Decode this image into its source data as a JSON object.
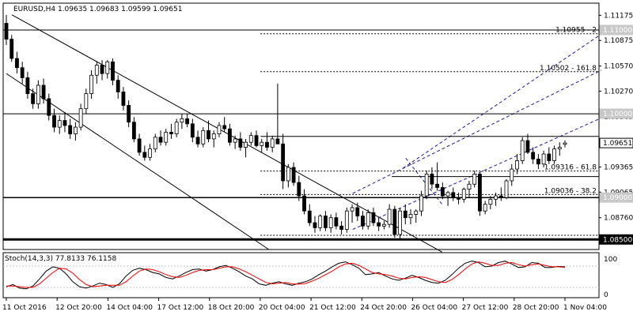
{
  "chart_header": "EURUSD,H4  1.09635 1.09683 1.09599 1.09651",
  "stoch_header": "Stoch(14,3,3) 77.8133 76.1158",
  "chart_data": [
    {
      "type": "candlestick",
      "symbol": "EURUSD",
      "timeframe": "H4",
      "ohlc_last": {
        "open": 1.09635,
        "high": 1.09683,
        "low": 1.09599,
        "close": 1.09651
      },
      "ylim": [
        1.0838,
        1.1132
      ],
      "y_ticks": [
        "1.11175",
        "1.10875",
        "1.10570",
        "1.10270",
        "1.09965",
        "1.09651",
        "1.09365",
        "1.09065",
        "1.08760"
      ],
      "x_ticks": [
        "11 Oct 2016",
        "12 Oct 20:00",
        "14 Oct 04:00",
        "17 Oct 12:00",
        "18 Oct 20:00",
        "20 Oct 04:00",
        "21 Oct 12:00",
        "24 Oct 20:00",
        "26 Oct 04:00",
        "27 Oct 12:00",
        "28 Oct 20:00",
        "1 Nov 04:00"
      ],
      "bull_color": "#ffffff",
      "bear_color": "#000000",
      "candles": [
        [
          1.1108,
          1.1118,
          1.1082,
          1.1089
        ],
        [
          1.1089,
          1.1094,
          1.1062,
          1.1066
        ],
        [
          1.1066,
          1.1074,
          1.1048,
          1.1055
        ],
        [
          1.1055,
          1.1062,
          1.1036,
          1.1043
        ],
        [
          1.1043,
          1.105,
          1.1018,
          1.1024
        ],
        [
          1.1024,
          1.103,
          1.1006,
          1.1012
        ],
        [
          1.1012,
          1.104,
          1.1006,
          1.1034
        ],
        [
          1.1034,
          1.1042,
          1.1012,
          1.1018
        ],
        [
          1.1018,
          1.1024,
          1.0992,
          1.0998
        ],
        [
          1.0998,
          1.1006,
          1.0978,
          1.0984
        ],
        [
          1.0984,
          1.0998,
          1.0976,
          1.0992
        ],
        [
          1.0992,
          1.1002,
          1.0978,
          1.0986
        ],
        [
          1.0986,
          1.0994,
          1.097,
          1.0976
        ],
        [
          1.0976,
          1.099,
          1.0968,
          1.0984
        ],
        [
          1.0984,
          1.1012,
          1.098,
          1.1006
        ],
        [
          1.1006,
          1.103,
          1.1,
          1.1024
        ],
        [
          1.1024,
          1.1052,
          1.1018,
          1.1046
        ],
        [
          1.1046,
          1.1062,
          1.1036,
          1.1058
        ],
        [
          1.1058,
          1.1064,
          1.104,
          1.1048
        ],
        [
          1.1048,
          1.1064,
          1.1042,
          1.1062
        ],
        [
          1.1062,
          1.1066,
          1.1034,
          1.104
        ],
        [
          1.104,
          1.1046,
          1.1018,
          1.1026
        ],
        [
          1.1026,
          1.1032,
          1.1004,
          1.101
        ],
        [
          1.101,
          1.1016,
          1.0984,
          1.099
        ],
        [
          1.099,
          1.0996,
          1.0966,
          1.097
        ],
        [
          1.097,
          1.0976,
          1.095,
          1.0954
        ],
        [
          1.0954,
          1.0962,
          1.0944,
          1.0948
        ],
        [
          1.0948,
          1.0964,
          1.0944,
          1.0958
        ],
        [
          1.0958,
          1.0976,
          1.0954,
          1.0972
        ],
        [
          1.0972,
          1.098,
          1.0962,
          1.0966
        ],
        [
          1.0966,
          1.0982,
          1.0962,
          1.0978
        ],
        [
          1.0978,
          1.0988,
          1.097,
          1.0976
        ],
        [
          1.0976,
          1.0994,
          1.0972,
          1.099
        ],
        [
          1.099,
          1.1,
          1.0982,
          1.0994
        ],
        [
          1.0994,
          1.1,
          1.0984,
          1.0988
        ],
        [
          1.0988,
          1.0994,
          1.0966,
          1.0972
        ],
        [
          1.0972,
          1.098,
          1.096,
          1.0964
        ],
        [
          1.0964,
          1.0984,
          1.096,
          1.098
        ],
        [
          1.098,
          1.0992,
          1.0966,
          1.097
        ],
        [
          1.097,
          1.098,
          1.096,
          1.0976
        ],
        [
          1.0976,
          1.099,
          1.0972,
          1.0986
        ],
        [
          1.0986,
          1.0996,
          1.0978,
          1.0982
        ],
        [
          1.0982,
          1.0988,
          1.0962,
          1.0966
        ],
        [
          1.0966,
          1.0974,
          1.0958,
          1.097
        ],
        [
          1.097,
          1.0978,
          1.0956,
          1.096
        ],
        [
          1.096,
          1.097,
          1.0948,
          1.0966
        ],
        [
          1.0966,
          1.0978,
          1.0962,
          1.0974
        ],
        [
          1.0974,
          1.098,
          1.096,
          1.0962
        ],
        [
          1.0962,
          1.097,
          1.0954,
          1.0966
        ],
        [
          1.0966,
          1.0978,
          1.0956,
          1.096
        ],
        [
          1.096,
          1.0974,
          1.0954,
          1.097
        ],
        [
          1.097,
          1.1036,
          1.0964,
          1.0964
        ],
        [
          1.0964,
          1.0976,
          1.091,
          1.092
        ],
        [
          1.092,
          1.094,
          1.0912,
          1.0936
        ],
        [
          1.0936,
          1.0942,
          1.0914,
          1.0918
        ],
        [
          1.0918,
          1.0926,
          1.0896,
          1.0902
        ],
        [
          1.0902,
          1.091,
          1.088,
          1.0884
        ],
        [
          1.0884,
          1.0892,
          1.0866,
          1.087
        ],
        [
          1.087,
          1.0878,
          1.0858,
          1.0864
        ],
        [
          1.0864,
          1.088,
          1.086,
          1.0878
        ],
        [
          1.0878,
          1.0884,
          1.086,
          1.0864
        ],
        [
          1.0864,
          1.088,
          1.0858,
          1.0876
        ],
        [
          1.0876,
          1.0882,
          1.0862,
          1.0866
        ],
        [
          1.0866,
          1.0872,
          1.0856,
          1.0862
        ],
        [
          1.0862,
          1.0888,
          1.0858,
          1.0884
        ],
        [
          1.0884,
          1.0892,
          1.087,
          1.0888
        ],
        [
          1.0888,
          1.0894,
          1.0872,
          1.0878
        ],
        [
          1.0878,
          1.0884,
          1.0862,
          1.0866
        ],
        [
          1.0866,
          1.0886,
          1.0862,
          1.0882
        ],
        [
          1.0882,
          1.0888,
          1.0866,
          1.087
        ],
        [
          1.087,
          1.0876,
          1.086,
          1.0866
        ],
        [
          1.0866,
          1.0872,
          1.0862,
          1.0868
        ],
        [
          1.0868,
          1.0892,
          1.0864,
          1.0886
        ],
        [
          1.0886,
          1.089,
          1.0852,
          1.0856
        ],
        [
          1.0856,
          1.0888,
          1.085,
          1.0884
        ],
        [
          1.0884,
          1.0892,
          1.0868,
          1.0876
        ],
        [
          1.0876,
          1.0886,
          1.0868,
          1.088
        ],
        [
          1.088,
          1.0886,
          1.087,
          1.0884
        ],
        [
          1.0884,
          1.0908,
          1.0878,
          1.0902
        ],
        [
          1.0902,
          1.0932,
          1.0898,
          1.0928
        ],
        [
          1.0928,
          1.0936,
          1.091,
          1.0916
        ],
        [
          1.0916,
          1.0942,
          1.0908,
          1.0912
        ],
        [
          1.0912,
          1.0918,
          1.0898,
          1.0902
        ],
        [
          1.0902,
          1.0908,
          1.089,
          1.0906
        ],
        [
          1.0906,
          1.0912,
          1.0896,
          1.09
        ],
        [
          1.09,
          1.0906,
          1.0892,
          1.0898
        ],
        [
          1.0898,
          1.0912,
          1.0894,
          1.091
        ],
        [
          1.091,
          1.092,
          1.09,
          1.0916
        ],
        [
          1.0916,
          1.0932,
          1.0912,
          1.0928
        ],
        [
          1.0928,
          1.093,
          1.0878,
          1.0884
        ],
        [
          1.0884,
          1.0896,
          1.088,
          1.0892
        ],
        [
          1.0892,
          1.0902,
          1.0886,
          1.0898
        ],
        [
          1.0898,
          1.0906,
          1.089,
          1.0902
        ],
        [
          1.0902,
          1.0912,
          1.0896,
          1.09
        ],
        [
          1.09,
          1.0922,
          1.0898,
          1.092
        ],
        [
          1.092,
          1.094,
          1.0914,
          1.0934
        ],
        [
          1.0934,
          1.0952,
          1.0928,
          1.0944
        ],
        [
          1.0944,
          1.0972,
          1.094,
          1.0968
        ],
        [
          1.0968,
          1.0976,
          1.0952,
          1.0954
        ],
        [
          1.0954,
          1.096,
          1.094,
          1.0946
        ],
        [
          1.0946,
          1.0952,
          1.0934,
          1.094
        ],
        [
          1.094,
          1.0956,
          1.0936,
          1.0952
        ],
        [
          1.0952,
          1.096,
          1.094,
          1.0944
        ],
        [
          1.0944,
          1.0962,
          1.094,
          1.0958
        ],
        [
          1.0958,
          1.0966,
          1.095,
          1.096
        ],
        [
          1.09635,
          1.09683,
          1.09599,
          1.09651
        ]
      ],
      "levels": [
        {
          "price": 1.10955,
          "label": "1.10955 - 2"
        },
        {
          "price": 1.10502,
          "label": "1.10502 - 161.8"
        },
        {
          "price": 1.09316,
          "label": "1.09316 - 61.8"
        },
        {
          "price": 1.09036,
          "label": "1.09036 - 38.2"
        }
      ],
      "price_tags": [
        {
          "text": "1.11000",
          "style": "grey",
          "price": 1.11
        },
        {
          "text": "1.10000",
          "style": "grey",
          "price": 1.1
        },
        {
          "text": "1.09651",
          "style": "white",
          "price": 1.09651
        },
        {
          "text": "1.09000",
          "style": "grey",
          "price": 1.09
        },
        {
          "text": "1.08500",
          "style": "black",
          "price": 1.085
        }
      ]
    },
    {
      "type": "line",
      "name": "Stoch(14,3,3)",
      "ylim": [
        0,
        100
      ],
      "y_ticks": [
        "100",
        "0"
      ],
      "main_color": "#000000",
      "signal_color": "#ff0000",
      "series": [
        {
          "name": "main",
          "values": [
            22,
            28,
            18,
            16,
            24,
            44,
            66,
            78,
            74,
            58,
            36,
            22,
            18,
            24,
            32,
            28,
            20,
            30,
            52,
            68,
            74,
            70,
            62,
            58,
            48,
            44,
            52,
            62,
            70,
            72,
            66,
            70,
            78,
            82,
            74,
            64,
            52,
            44,
            30,
            26,
            32,
            36,
            30,
            26,
            32,
            36,
            44,
            56,
            66,
            78,
            88,
            92,
            84,
            74,
            56,
            58,
            62,
            52,
            44,
            40,
            46,
            54,
            48,
            40,
            34,
            32,
            40,
            56,
            74,
            88,
            94,
            90,
            78,
            80,
            90,
            94,
            86,
            76,
            78,
            90,
            88,
            76,
            76,
            79,
            77.8
          ]
        },
        {
          "name": "signal",
          "values": [
            24,
            24,
            22,
            20,
            20,
            30,
            46,
            62,
            74,
            72,
            60,
            42,
            28,
            22,
            24,
            26,
            26,
            26,
            36,
            52,
            66,
            72,
            70,
            64,
            56,
            50,
            48,
            54,
            62,
            68,
            70,
            70,
            74,
            78,
            78,
            72,
            64,
            54,
            44,
            34,
            30,
            32,
            34,
            30,
            29,
            31,
            38,
            46,
            56,
            66,
            78,
            86,
            88,
            82,
            72,
            62,
            58,
            56,
            52,
            46,
            44,
            48,
            50,
            48,
            42,
            36,
            34,
            42,
            56,
            72,
            86,
            92,
            88,
            82,
            82,
            88,
            90,
            84,
            80,
            84,
            86,
            82,
            78,
            78,
            76.1
          ]
        }
      ]
    }
  ]
}
